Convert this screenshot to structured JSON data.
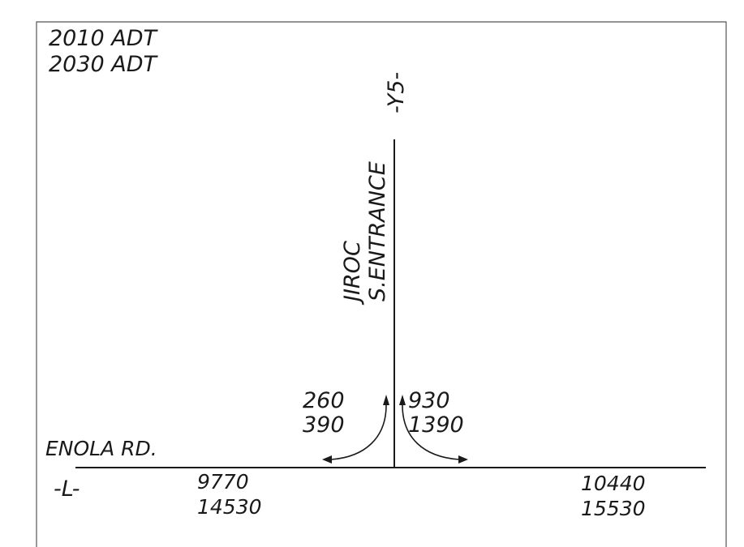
{
  "legend": {
    "line1": "2010 ADT",
    "line2": "2030 ADT"
  },
  "side_road": {
    "designation": "-Y5-",
    "name_line1": "JIROC",
    "name_line2": "S.ENTRANCE"
  },
  "main_road": {
    "name": "ENOLA RD.",
    "designation": "-L-"
  },
  "volumes": {
    "left_turn": {
      "adt_2010": "260",
      "adt_2030": "390"
    },
    "right_turn": {
      "adt_2010": "930",
      "adt_2030": "1390"
    },
    "west_segment": {
      "adt_2010": "9770",
      "adt_2030": "14530"
    },
    "east_segment": {
      "adt_2010": "10440",
      "adt_2030": "15530"
    }
  }
}
